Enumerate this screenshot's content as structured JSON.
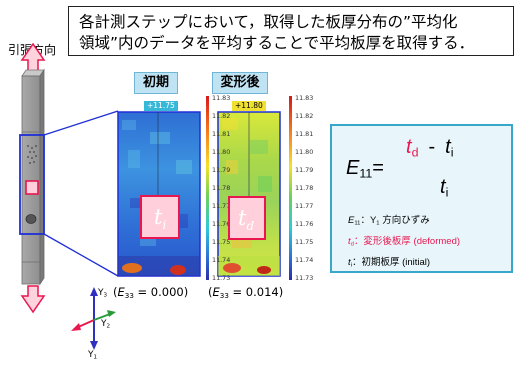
{
  "callout": {
    "line1": "各計測ステップにおいて，取得した板厚分布の”平均化",
    "line2": "領域”内のデータを平均することで平均板厚を取得する．"
  },
  "specimen": {
    "direction_label": "引張方向"
  },
  "panels": [
    {
      "title": "初期",
      "max_label": "+11.75",
      "symbol": "t",
      "symbol_sub": "i",
      "caption_var": "E",
      "caption_sub": "33",
      "caption_value": " = 0.000)"
    },
    {
      "title": "変形後",
      "max_label": "+11.80",
      "symbol": "t",
      "symbol_sub": "d",
      "caption_var": "E",
      "caption_sub": "33",
      "caption_value": " = 0.014)"
    }
  ],
  "colorbar_ticks": [
    "11.83",
    "11.82",
    "11.81",
    "11.80",
    "11.79",
    "11.78",
    "11.77",
    "11.76",
    "11.75",
    "11.74",
    "11.73"
  ],
  "axes": {
    "y3": "Y",
    "y3_sub": "3",
    "y2": "Y",
    "y2_sub": "2",
    "y1": "Y",
    "y1_sub": "1"
  },
  "equation": {
    "lhs": "E",
    "lhs_sub": "11",
    "equals": "=",
    "num_a": "t",
    "num_a_sub": "d",
    "minus": "-",
    "num_b": "t",
    "num_b_sub": "i",
    "den": "t",
    "den_sub": "i"
  },
  "legend": [
    {
      "sym": "E",
      "sub": "11",
      "text": "：Y",
      "text_sub": "1",
      "text_tail": " 方向ひずみ",
      "color": "#000000"
    },
    {
      "sym": "t",
      "sub": "d",
      "text": "：変形後板厚 (deformed)",
      "text_sub": "",
      "text_tail": "",
      "color": "#e8174f"
    },
    {
      "sym": "t",
      "sub": "i",
      "text": "：初期板厚 (initial)",
      "text_sub": "",
      "text_tail": "",
      "color": "#000000"
    }
  ],
  "colors": {
    "accent_red": "#e8174f",
    "frame_blue": "#1e2fd6",
    "eq_border": "#38a7c9",
    "arrow_pink": "#ffd3dd"
  }
}
